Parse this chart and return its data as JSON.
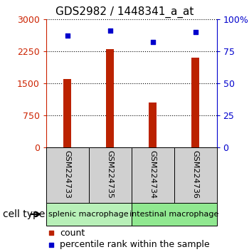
{
  "title": "GDS2982 / 1448341_a_at",
  "samples": [
    "GSM224733",
    "GSM224735",
    "GSM224734",
    "GSM224736"
  ],
  "bar_values": [
    1600,
    2300,
    1050,
    2100
  ],
  "percentile_values": [
    87,
    91,
    82,
    90
  ],
  "cell_types": [
    {
      "label": "splenic macrophage",
      "samples": [
        0,
        1
      ],
      "color": "#b8f0b8"
    },
    {
      "label": "intestinal macrophage",
      "samples": [
        2,
        3
      ],
      "color": "#90e890"
    }
  ],
  "left_yticks": [
    0,
    750,
    1500,
    2250,
    3000
  ],
  "right_yticks": [
    0,
    25,
    50,
    75,
    100
  ],
  "bar_color": "#bb2200",
  "dot_color": "#0000cc",
  "left_axis_color": "#cc2200",
  "right_axis_color": "#0000cc",
  "background_color": "#ffffff",
  "grid_color": "#000000",
  "sample_box_color": "#d0d0d0",
  "legend_bar_label": "count",
  "legend_dot_label": "percentile rank within the sample",
  "cell_type_label": "cell type",
  "title_fontsize": 11,
  "tick_fontsize": 9,
  "sample_fontsize": 8,
  "cell_fontsize": 8,
  "legend_fontsize": 9,
  "cell_type_fontsize": 10
}
